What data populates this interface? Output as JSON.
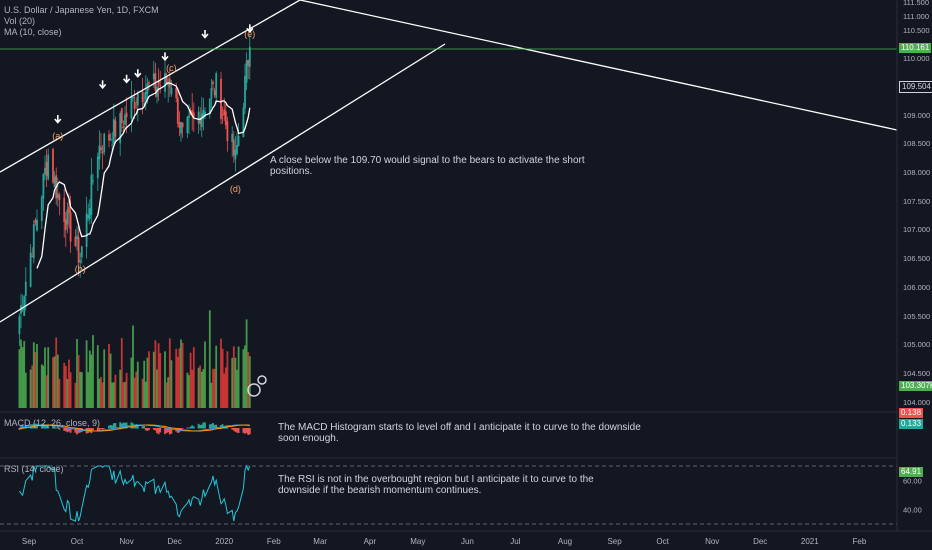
{
  "legend": {
    "symbol": "U.S. Dollar / Japanese Yen, 1D, FXCM",
    "vol": "Vol (20)",
    "ma": "MA (10, close)",
    "macd": "MACD (12, 26, close, 9)",
    "rsi": "RSI (14, close)"
  },
  "annotations": {
    "price_note": "A close below the 109.70 would signal to the bears to activate the short positions.",
    "macd_note": "The MACD Histogram starts to level off and I anticipate it to curve to the downside soon enough.",
    "rsi_note": "The RSI is not in the overbought region but I anticipate it to curve to the downside if the bearish momentum continues."
  },
  "wave_labels": [
    "(a)",
    "(b)",
    "(c)",
    "(d)",
    "(e)"
  ],
  "price_axis": {
    "ticks": [
      "111.500",
      "111.000",
      "110.500",
      "110.000",
      "109.500",
      "109.000",
      "108.500",
      "108.000",
      "107.500",
      "107.000",
      "106.500",
      "106.000",
      "105.500",
      "105.000",
      "104.500",
      "104.000"
    ],
    "last_price": "110.161",
    "ma_value": "109.504",
    "volume_value": "103.307K"
  },
  "macd_axis": {
    "value_a": "0.138",
    "value_b": "0.133"
  },
  "rsi_axis": {
    "ticks": [
      "60.00",
      "40.00"
    ],
    "value": "64.91"
  },
  "time_axis": [
    "Sep",
    "Oct",
    "Nov",
    "Dec",
    "2020",
    "Feb",
    "Mar",
    "Apr",
    "May",
    "Jun",
    "Jul",
    "Aug",
    "Sep",
    "Oct",
    "Nov",
    "Dec",
    "2021",
    "Feb"
  ],
  "colors": {
    "background": "#131722",
    "up": "#26a69a",
    "down": "#ef5350",
    "volume_up": "#4caf50",
    "volume_down": "#e53935",
    "price_line": "#4caf50",
    "trendline": "#ffffff",
    "wave_label": "#f5a46b",
    "rsi_line": "#26c6da",
    "macd_box": "#26a69a",
    "grid": "#2a2e39"
  },
  "icons": [
    "arrow-down-icon",
    "tv-logo-icon"
  ],
  "chart_data": {
    "type": "candlestick",
    "title": "U.S. Dollar / Japanese Yen, 1D, FXCM",
    "ylim": [
      103.9,
      111.5
    ],
    "xlabel": "",
    "ylabel": "",
    "grid": false,
    "anchor_closes": [
      {
        "date": "2019-08-26",
        "close": 105.5
      },
      {
        "date": "2019-09-13",
        "close": 108.3
      },
      {
        "date": "2019-09-19",
        "close": 107.6
      },
      {
        "date": "2019-10-03",
        "close": 106.5
      },
      {
        "date": "2019-10-14",
        "close": 108.4
      },
      {
        "date": "2019-10-30",
        "close": 108.9
      },
      {
        "date": "2019-11-08",
        "close": 109.4
      },
      {
        "date": "2019-11-29",
        "close": 109.6
      },
      {
        "date": "2019-12-06",
        "close": 108.6
      },
      {
        "date": "2019-12-27",
        "close": 109.5
      },
      {
        "date": "2020-01-08",
        "close": 108.2
      },
      {
        "date": "2020-01-17",
        "close": 110.2
      }
    ],
    "wave_points": [
      {
        "label": "(a)",
        "date": "2019-09-19",
        "price": 108.5
      },
      {
        "label": "(b)",
        "date": "2019-10-03",
        "price": 106.5
      },
      {
        "label": "(c)",
        "date": "2019-11-29",
        "price": 109.7
      },
      {
        "label": "(d)",
        "date": "2020-01-08",
        "price": 107.9
      },
      {
        "label": "(e)",
        "date": "2020-01-17",
        "price": 110.3
      }
    ],
    "last_price": 110.161,
    "ma_last": 109.504,
    "volume_last": "103.307K",
    "macd_last": [
      0.138,
      0.133
    ],
    "rsi_last": 64.91,
    "rsi_range": [
      30,
      70
    ]
  }
}
